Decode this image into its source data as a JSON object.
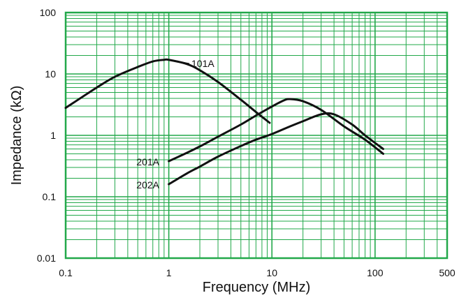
{
  "chart_data": {
    "type": "line",
    "title": "",
    "xlabel": "Frequency (MHz)",
    "ylabel": "Impedance (kΩ)",
    "x_scale": "log",
    "y_scale": "log",
    "xlim": [
      0.1,
      500
    ],
    "ylim": [
      0.01,
      100
    ],
    "x_tick_labels": [
      "0.1",
      "1",
      "10",
      "100",
      "500"
    ],
    "x_tick_values": [
      0.1,
      1,
      10,
      100,
      500
    ],
    "y_tick_labels": [
      "0.01",
      "0.1",
      "1",
      "10",
      "100"
    ],
    "y_tick_values": [
      0.01,
      0.1,
      1,
      10,
      100
    ],
    "grid": true,
    "grid_color": "#22a84a",
    "line_color": "#111111",
    "series": [
      {
        "name": "101A",
        "x": [
          0.1,
          0.2,
          0.3,
          0.5,
          0.7,
          0.9,
          1.0,
          1.5,
          2,
          3,
          5,
          7,
          9.5
        ],
        "y": [
          2.8,
          6.0,
          9.0,
          13.0,
          16.0,
          17.0,
          17.0,
          14.5,
          11.5,
          7.4,
          3.8,
          2.4,
          1.6
        ]
      },
      {
        "name": "201A",
        "x": [
          1,
          1.5,
          2,
          3,
          5,
          7,
          10,
          13,
          15,
          20,
          30,
          50,
          80,
          120
        ],
        "y": [
          0.38,
          0.52,
          0.66,
          0.95,
          1.5,
          2.1,
          2.95,
          3.7,
          3.9,
          3.6,
          2.6,
          1.4,
          0.85,
          0.5
        ]
      },
      {
        "name": "202A",
        "x": [
          1,
          1.5,
          2,
          3,
          5,
          7,
          10,
          15,
          20,
          30,
          40,
          60,
          80,
          120
        ],
        "y": [
          0.16,
          0.24,
          0.31,
          0.45,
          0.67,
          0.85,
          1.05,
          1.4,
          1.7,
          2.2,
          2.2,
          1.5,
          1.0,
          0.6
        ]
      }
    ]
  }
}
